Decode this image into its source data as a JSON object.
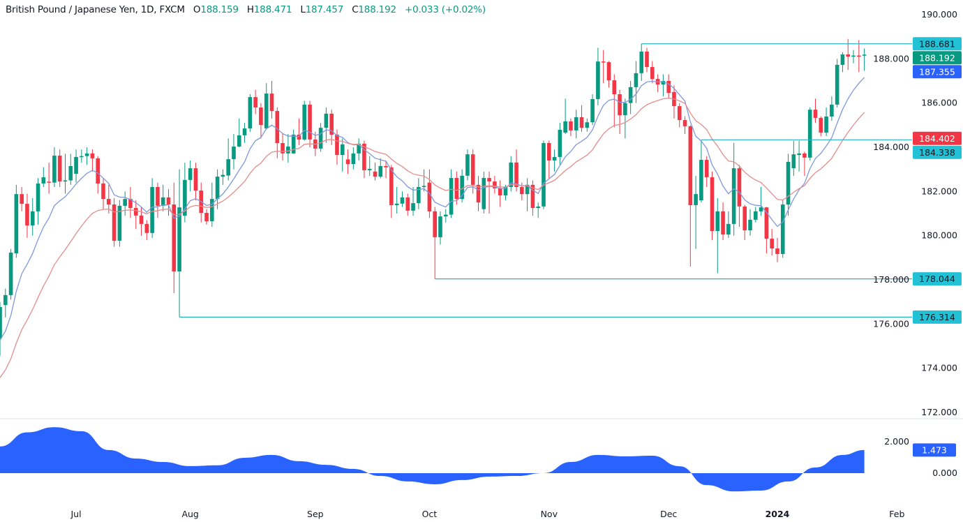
{
  "header": {
    "symbol": "British Pound / Japanese Yen, 1D, FXCM",
    "open_label": "O",
    "open": "188.159",
    "high_label": "H",
    "high": "188.471",
    "low_label": "L",
    "low": "187.457",
    "close_label": "C",
    "close": "188.192",
    "change": "+0.033 (+0.02%)"
  },
  "colors": {
    "up": "#089981",
    "down": "#f23645",
    "ma_fast": "#7e98dc",
    "ma_slow": "#e58c8c",
    "hline": "#22b5c4",
    "osc": "#2962ff",
    "label_cyan": "#22c1d6",
    "label_green": "#089981",
    "label_blue": "#2962ff",
    "label_red": "#f23645"
  },
  "chart_data": [
    {
      "type": "candlestick",
      "ylim": [
        172,
        190
      ],
      "grid": false,
      "y_ticks": [
        "190.000",
        "188.000",
        "186.000",
        "184.000",
        "182.000",
        "180.000",
        "178.000",
        "176.000",
        "174.000",
        "172.000"
      ],
      "time_labels": [
        {
          "label": "Jul",
          "index": 14
        },
        {
          "label": "Aug",
          "index": 35
        },
        {
          "label": "Sep",
          "index": 58
        },
        {
          "label": "Oct",
          "index": 79
        },
        {
          "label": "Nov",
          "index": 101
        },
        {
          "label": "Dec",
          "index": 123
        },
        {
          "label": "2024",
          "index": 143,
          "bold": true
        },
        {
          "label": "Feb",
          "index": 165
        }
      ],
      "candles_ohlc": [
        [
          175.35,
          177.0,
          174.56,
          176.77
        ],
        [
          176.86,
          177.6,
          176.3,
          177.31
        ],
        [
          177.31,
          179.4,
          177.1,
          179.23
        ],
        [
          179.2,
          182.3,
          179.0,
          181.88
        ],
        [
          181.88,
          182.2,
          181.1,
          181.44
        ],
        [
          181.44,
          181.9,
          179.9,
          180.46
        ],
        [
          180.46,
          181.7,
          180.0,
          181.1
        ],
        [
          181.1,
          182.6,
          180.5,
          182.36
        ],
        [
          182.36,
          183.1,
          182.2,
          182.64
        ],
        [
          182.44,
          183.3,
          181.9,
          182.4
        ],
        [
          182.4,
          184.0,
          182.2,
          183.62
        ],
        [
          183.62,
          183.9,
          182.2,
          182.45
        ],
        [
          182.45,
          183.7,
          181.9,
          182.5
        ],
        [
          182.5,
          183.7,
          182.3,
          183.15
        ],
        [
          182.8,
          183.9,
          182.4,
          183.56
        ],
        [
          183.56,
          183.9,
          183.3,
          183.6
        ],
        [
          183.6,
          184.0,
          183.2,
          183.72
        ],
        [
          183.72,
          183.9,
          182.9,
          183.5
        ],
        [
          183.5,
          183.6,
          181.9,
          182.36
        ],
        [
          182.36,
          182.6,
          181.2,
          181.66
        ],
        [
          181.66,
          182.3,
          181.0,
          181.41
        ],
        [
          181.41,
          181.7,
          179.5,
          179.77
        ],
        [
          179.77,
          181.6,
          179.5,
          181.35
        ],
        [
          181.35,
          182.0,
          180.9,
          181.66
        ],
        [
          181.66,
          182.2,
          180.8,
          181.25
        ],
        [
          181.25,
          181.6,
          180.3,
          180.91
        ],
        [
          180.91,
          181.3,
          180.0,
          180.53
        ],
        [
          180.53,
          180.7,
          179.8,
          180.12
        ],
        [
          180.12,
          182.6,
          179.9,
          182.2
        ],
        [
          182.2,
          182.4,
          180.8,
          181.35
        ],
        [
          181.35,
          182.3,
          181.1,
          181.73
        ],
        [
          181.73,
          182.1,
          180.9,
          181.41
        ],
        [
          181.41,
          182.4,
          177.4,
          178.38
        ],
        [
          178.38,
          183.0,
          176.314,
          181.28
        ],
        [
          180.9,
          183.3,
          180.6,
          182.52
        ],
        [
          182.52,
          183.4,
          182.0,
          183.05
        ],
        [
          183.05,
          183.3,
          181.6,
          182.04
        ],
        [
          182.04,
          182.4,
          180.6,
          181.03
        ],
        [
          181.03,
          181.2,
          180.5,
          180.65
        ],
        [
          180.65,
          182.4,
          180.4,
          181.66
        ],
        [
          181.66,
          183.0,
          181.2,
          182.67
        ],
        [
          182.67,
          183.0,
          182.3,
          182.75
        ],
        [
          182.72,
          184.4,
          182.5,
          183.46
        ],
        [
          183.46,
          184.6,
          183.0,
          184.03
        ],
        [
          184.03,
          185.3,
          184.0,
          184.54
        ],
        [
          184.54,
          185.1,
          184.2,
          184.85
        ],
        [
          184.85,
          186.4,
          184.7,
          186.27
        ],
        [
          186.27,
          186.6,
          185.5,
          185.8
        ],
        [
          185.8,
          186.0,
          184.4,
          185.01
        ],
        [
          184.85,
          186.9,
          184.8,
          186.43
        ],
        [
          186.43,
          187.0,
          185.3,
          185.64
        ],
        [
          185.64,
          185.8,
          183.5,
          184.19
        ],
        [
          184.19,
          184.6,
          183.4,
          183.72
        ],
        [
          183.72,
          184.6,
          183.3,
          184.03
        ],
        [
          183.72,
          184.8,
          183.7,
          184.57
        ],
        [
          184.57,
          185.3,
          184.1,
          184.35
        ],
        [
          184.35,
          186.1,
          184.3,
          185.93
        ],
        [
          185.93,
          186.1,
          184.0,
          184.35
        ],
        [
          184.35,
          184.7,
          183.6,
          183.94
        ],
        [
          183.94,
          185.1,
          183.8,
          184.88
        ],
        [
          184.88,
          185.8,
          184.2,
          185.52
        ],
        [
          185.52,
          185.7,
          184.1,
          184.57
        ],
        [
          184.57,
          184.8,
          183.2,
          183.65
        ],
        [
          183.65,
          184.4,
          182.9,
          184.13
        ],
        [
          183.45,
          183.9,
          182.8,
          183.24
        ],
        [
          183.24,
          184.0,
          183.0,
          183.72
        ],
        [
          183.72,
          184.4,
          183.4,
          184.16
        ],
        [
          184.16,
          184.3,
          182.6,
          182.96
        ],
        [
          182.96,
          183.6,
          182.7,
          183.02
        ],
        [
          182.9,
          183.3,
          182.5,
          182.67
        ],
        [
          182.67,
          183.5,
          182.6,
          183.15
        ],
        [
          183.15,
          183.4,
          182.6,
          183.09
        ],
        [
          183.09,
          183.2,
          180.8,
          181.38
        ],
        [
          181.38,
          182.2,
          181.0,
          181.45
        ],
        [
          181.45,
          182.0,
          181.3,
          181.73
        ],
        [
          181.73,
          181.9,
          180.9,
          181.13
        ],
        [
          181.13,
          182.2,
          180.9,
          181.47
        ],
        [
          181.47,
          182.6,
          181.2,
          182.2
        ],
        [
          182.2,
          183.0,
          182.0,
          182.25
        ],
        [
          182.4,
          183.0,
          180.8,
          181.1
        ],
        [
          181.1,
          181.3,
          178.044,
          179.93
        ],
        [
          179.93,
          181.1,
          179.6,
          180.87
        ],
        [
          180.87,
          181.2,
          180.6,
          180.95
        ],
        [
          180.95,
          183.0,
          180.8,
          182.61
        ],
        [
          182.61,
          182.9,
          181.4,
          181.66
        ],
        [
          181.66,
          183.0,
          181.5,
          182.71
        ],
        [
          182.71,
          183.9,
          182.5,
          183.68
        ],
        [
          183.68,
          183.9,
          181.9,
          182.3
        ],
        [
          182.3,
          182.7,
          181.1,
          181.5
        ],
        [
          181.2,
          182.9,
          181.0,
          182.61
        ],
        [
          182.61,
          182.9,
          181.0,
          182.45
        ],
        [
          182.45,
          182.7,
          181.9,
          182.14
        ],
        [
          182.14,
          182.5,
          181.3,
          181.82
        ],
        [
          181.82,
          182.3,
          181.6,
          182.2
        ],
        [
          182.2,
          183.6,
          182.0,
          183.31
        ],
        [
          183.31,
          183.9,
          182.0,
          182.2
        ],
        [
          182.2,
          182.4,
          181.6,
          181.88
        ],
        [
          181.88,
          182.6,
          181.1,
          182.3
        ],
        [
          182.3,
          182.5,
          180.9,
          181.25
        ],
        [
          181.25,
          181.5,
          180.8,
          181.32
        ],
        [
          181.32,
          184.3,
          181.2,
          184.19
        ],
        [
          184.19,
          184.3,
          182.6,
          183.4
        ],
        [
          183.4,
          183.9,
          182.9,
          183.56
        ],
        [
          183.56,
          185.1,
          183.2,
          184.79
        ],
        [
          184.66,
          186.2,
          184.6,
          185.17
        ],
        [
          185.17,
          185.3,
          184.5,
          184.76
        ],
        [
          184.76,
          185.7,
          184.4,
          185.36
        ],
        [
          185.36,
          185.9,
          184.7,
          184.88
        ],
        [
          184.88,
          185.3,
          184.7,
          185.13
        ],
        [
          185.13,
          186.4,
          185.0,
          186.18
        ],
        [
          186.18,
          188.5,
          185.9,
          187.88
        ],
        [
          187.88,
          188.4,
          186.9,
          187.85
        ],
        [
          187.85,
          187.9,
          186.7,
          187.03
        ],
        [
          187.03,
          187.3,
          184.9,
          186.4
        ],
        [
          186.4,
          186.6,
          184.6,
          185.45
        ],
        [
          185.45,
          186.2,
          184.4,
          186.0
        ],
        [
          186.0,
          187.0,
          185.5,
          186.72
        ],
        [
          186.72,
          187.9,
          186.0,
          187.35
        ],
        [
          187.35,
          188.681,
          187.0,
          188.33
        ],
        [
          188.33,
          188.5,
          187.4,
          187.63
        ],
        [
          187.63,
          187.9,
          186.9,
          187.09
        ],
        [
          187.09,
          187.3,
          186.5,
          186.84
        ],
        [
          186.84,
          187.3,
          186.3,
          187.0
        ],
        [
          187.0,
          187.3,
          186.2,
          186.46
        ],
        [
          186.5,
          186.8,
          185.3,
          185.86
        ],
        [
          185.86,
          186.0,
          184.9,
          185.23
        ],
        [
          185.23,
          185.4,
          184.6,
          184.95
        ],
        [
          184.95,
          185.0,
          178.6,
          181.38
        ],
        [
          181.38,
          182.7,
          179.4,
          181.88
        ],
        [
          181.6,
          184.338,
          181.5,
          183.43
        ],
        [
          183.43,
          183.6,
          182.2,
          182.64
        ],
        [
          182.64,
          182.9,
          179.8,
          180.21
        ],
        [
          180.21,
          181.7,
          178.3,
          181.1
        ],
        [
          181.1,
          181.5,
          179.8,
          180.05
        ],
        [
          180.05,
          181.1,
          179.9,
          180.53
        ],
        [
          180.53,
          184.2,
          180.0,
          183.05
        ],
        [
          183.05,
          183.2,
          180.4,
          181.32
        ],
        [
          181.32,
          181.4,
          179.8,
          180.24
        ],
        [
          180.24,
          181.2,
          180.0,
          180.72
        ],
        [
          180.72,
          181.3,
          180.6,
          181.1
        ],
        [
          181.1,
          182.2,
          180.9,
          181.28
        ],
        [
          181.28,
          181.3,
          179.2,
          179.86
        ],
        [
          179.86,
          180.3,
          179.1,
          179.42
        ],
        [
          179.42,
          179.9,
          178.8,
          179.17
        ],
        [
          179.17,
          181.6,
          179.0,
          181.41
        ],
        [
          181.41,
          183.7,
          180.9,
          183.34
        ],
        [
          183.05,
          184.3,
          182.7,
          183.68
        ],
        [
          183.65,
          184.3,
          182.9,
          183.72
        ],
        [
          183.72,
          183.8,
          182.7,
          183.53
        ],
        [
          183.53,
          185.8,
          183.4,
          185.7
        ],
        [
          185.7,
          186.2,
          185.1,
          185.33
        ],
        [
          185.33,
          185.4,
          184.5,
          184.66
        ],
        [
          184.66,
          185.8,
          184.5,
          185.39
        ],
        [
          185.39,
          186.3,
          185.2,
          185.93
        ],
        [
          185.93,
          188.0,
          185.8,
          187.73
        ],
        [
          187.73,
          188.3,
          187.4,
          188.2
        ],
        [
          188.2,
          188.9,
          187.5,
          188.1
        ],
        [
          188.1,
          188.4,
          187.8,
          188.15
        ],
        [
          188.15,
          188.85,
          187.4,
          188.14
        ],
        [
          188.159,
          188.471,
          187.457,
          188.192
        ]
      ],
      "moving_averages": [
        {
          "kind": "ema",
          "period": 9,
          "color_key": "ma_fast",
          "last_value": "187.355"
        },
        {
          "kind": "ema",
          "period": 20,
          "color_key": "ma_slow",
          "last_value": "184.402"
        }
      ],
      "horizontal_lines": [
        {
          "price": 188.681,
          "from_index": 118,
          "label": "188.681"
        },
        {
          "price": 184.338,
          "from_index": 129,
          "label": "184.338"
        },
        {
          "price": 178.044,
          "from_index": 80,
          "label": "178.044"
        },
        {
          "price": 176.314,
          "from_index": 33,
          "label": "176.314"
        }
      ],
      "last_price_label": "188.192"
    },
    {
      "type": "area",
      "ylim": [
        -1.6,
        3.3
      ],
      "y_ticks": [
        "2.000",
        "0.000"
      ],
      "sample_step_bars": 5,
      "values": [
        1.7,
        2.6,
        2.93,
        2.67,
        1.47,
        0.93,
        0.71,
        0.45,
        0.5,
        0.98,
        1.16,
        0.76,
        0.53,
        0.27,
        -0.18,
        -0.53,
        -0.71,
        -0.44,
        -0.22,
        -0.18,
        0.0,
        0.71,
        1.16,
        1.07,
        1.11,
        0.44,
        -0.76,
        -1.16,
        -1.11,
        -0.53,
        0.36,
        1.16,
        1.473
      ],
      "last_value_label": "1.473"
    }
  ]
}
